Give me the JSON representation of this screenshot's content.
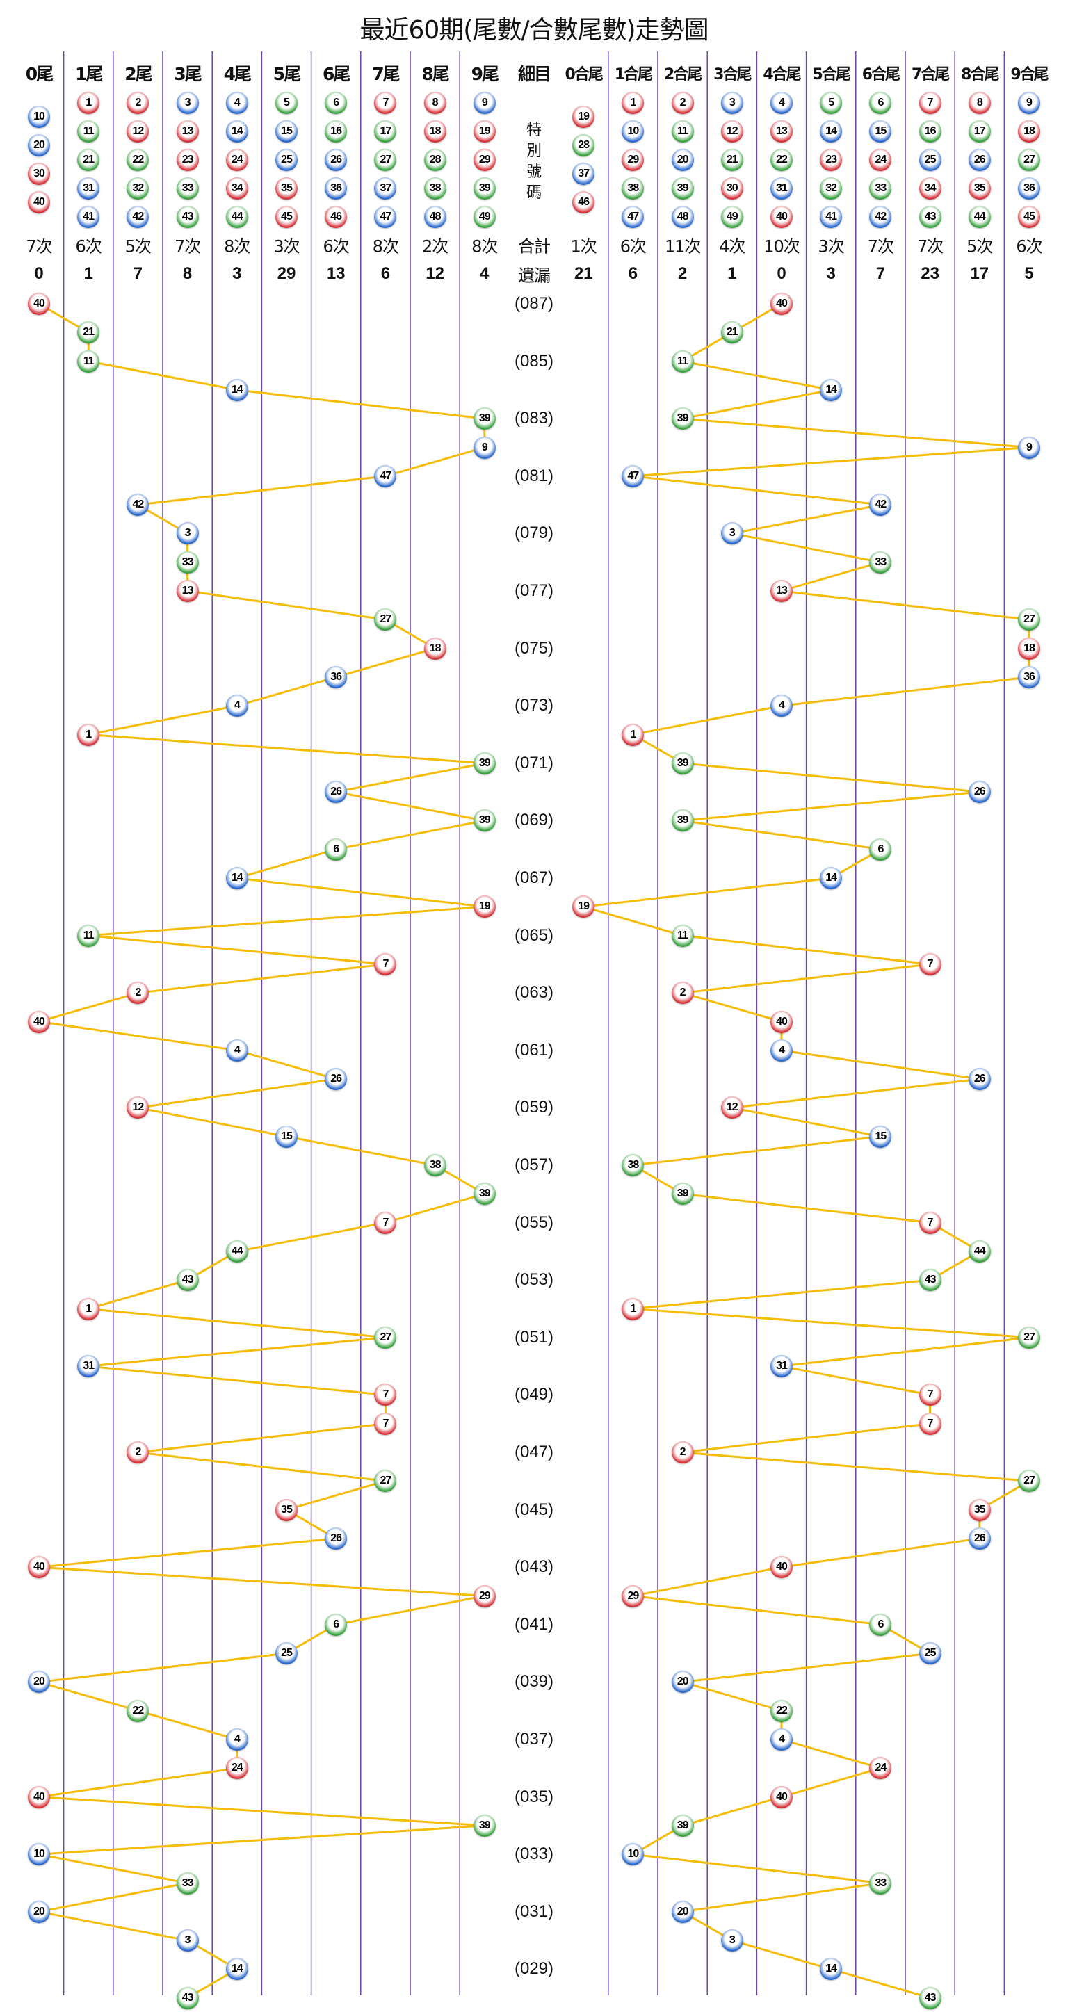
{
  "title": "最近60期(尾數/合數尾數)走勢圖",
  "colors": {
    "line": "#f5bd0a",
    "grid": "#6b44a8",
    "red": "#d3262e",
    "blue": "#1d5fc9",
    "green": "#2d9c34"
  },
  "red_numbers": [
    1,
    2,
    7,
    8,
    12,
    13,
    18,
    19,
    23,
    24,
    29,
    30,
    34,
    35,
    40,
    45,
    46
  ],
  "blue_numbers": [
    3,
    4,
    9,
    10,
    14,
    15,
    20,
    25,
    26,
    31,
    36,
    37,
    41,
    42,
    47,
    48
  ],
  "center": {
    "header": "細目",
    "special_label": [
      "特",
      "別",
      "號",
      "碼"
    ],
    "count_label": "合計",
    "omission_label": "遺漏"
  },
  "tail_columns": [
    {
      "label": "0尾",
      "numbers": [
        10,
        20,
        30,
        40
      ],
      "count": "7次",
      "omission": "0"
    },
    {
      "label": "1尾",
      "numbers": [
        1,
        11,
        21,
        31,
        41
      ],
      "count": "6次",
      "omission": "1"
    },
    {
      "label": "2尾",
      "numbers": [
        2,
        12,
        22,
        32,
        42
      ],
      "count": "5次",
      "omission": "7"
    },
    {
      "label": "3尾",
      "numbers": [
        3,
        13,
        23,
        33,
        43
      ],
      "count": "7次",
      "omission": "8"
    },
    {
      "label": "4尾",
      "numbers": [
        4,
        14,
        24,
        34,
        44
      ],
      "count": "8次",
      "omission": "3"
    },
    {
      "label": "5尾",
      "numbers": [
        5,
        15,
        25,
        35,
        45
      ],
      "count": "3次",
      "omission": "29"
    },
    {
      "label": "6尾",
      "numbers": [
        6,
        16,
        26,
        36,
        46
      ],
      "count": "6次",
      "omission": "13"
    },
    {
      "label": "7尾",
      "numbers": [
        7,
        17,
        27,
        37,
        47
      ],
      "count": "8次",
      "omission": "6"
    },
    {
      "label": "8尾",
      "numbers": [
        8,
        18,
        28,
        38,
        48
      ],
      "count": "2次",
      "omission": "12"
    },
    {
      "label": "9尾",
      "numbers": [
        9,
        19,
        29,
        39,
        49
      ],
      "count": "8次",
      "omission": "4"
    }
  ],
  "sum_tail_columns": [
    {
      "label": "0合尾",
      "numbers": [
        19,
        28,
        37,
        46
      ],
      "count": "1次",
      "omission": "21"
    },
    {
      "label": "1合尾",
      "numbers": [
        1,
        10,
        29,
        38,
        47
      ],
      "count": "6次",
      "omission": "6"
    },
    {
      "label": "2合尾",
      "numbers": [
        2,
        11,
        20,
        39,
        48
      ],
      "count": "11次",
      "omission": "2"
    },
    {
      "label": "3合尾",
      "numbers": [
        3,
        12,
        21,
        30,
        49
      ],
      "count": "4次",
      "omission": "1"
    },
    {
      "label": "4合尾",
      "numbers": [
        4,
        13,
        22,
        31,
        40
      ],
      "count": "10次",
      "omission": "0"
    },
    {
      "label": "5合尾",
      "numbers": [
        5,
        14,
        23,
        32,
        41
      ],
      "count": "3次",
      "omission": "3"
    },
    {
      "label": "6合尾",
      "numbers": [
        6,
        15,
        24,
        33,
        42
      ],
      "count": "7次",
      "omission": "7"
    },
    {
      "label": "7合尾",
      "numbers": [
        7,
        16,
        25,
        34,
        43
      ],
      "count": "7次",
      "omission": "23"
    },
    {
      "label": "8合尾",
      "numbers": [
        8,
        17,
        26,
        35,
        44
      ],
      "count": "5次",
      "omission": "17"
    },
    {
      "label": "9合尾",
      "numbers": [
        9,
        18,
        27,
        36,
        45
      ],
      "count": "6次",
      "omission": "5"
    }
  ],
  "chart_data": {
    "type": "line",
    "title": "最近60期(尾數/合數尾數)走勢圖",
    "period_labels": [
      "(087)",
      "(085)",
      "(083)",
      "(081)",
      "(079)",
      "(077)",
      "(075)",
      "(073)",
      "(071)",
      "(069)",
      "(067)",
      "(065)",
      "(063)",
      "(061)",
      "(059)",
      "(057)",
      "(055)",
      "(053)",
      "(051)",
      "(049)",
      "(047)",
      "(045)",
      "(043)",
      "(041)",
      "(039)",
      "(037)",
      "(035)",
      "(033)",
      "(031)",
      "(029)"
    ],
    "draws": [
      40,
      21,
      11,
      14,
      39,
      9,
      47,
      42,
      3,
      33,
      13,
      27,
      18,
      36,
      4,
      1,
      39,
      26,
      39,
      6,
      14,
      19,
      11,
      7,
      2,
      40,
      4,
      26,
      12,
      15,
      38,
      39,
      7,
      44,
      43,
      1,
      27,
      31,
      7,
      7,
      2,
      27,
      35,
      26,
      40,
      29,
      6,
      25,
      20,
      22,
      4,
      24,
      40,
      39,
      10,
      33,
      20,
      3,
      14,
      43
    ]
  }
}
